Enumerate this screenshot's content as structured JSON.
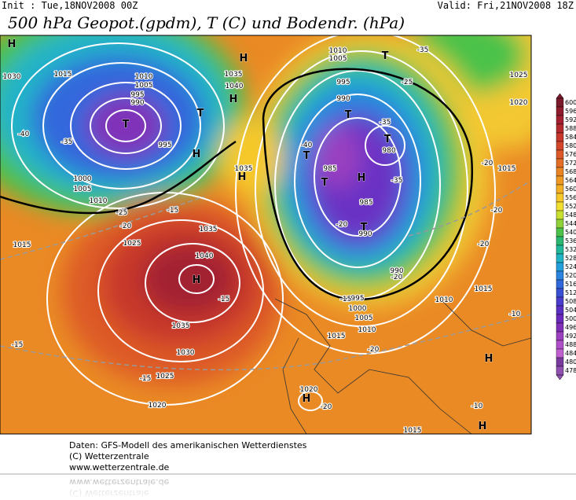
{
  "header": {
    "init": "Init : Tue,18NOV2008 00Z",
    "valid": "Valid: Fri,21NOV2008 18Z",
    "title": "500 hPa Geopot.(gpdm), T (C) und Bodendr. (hPa)"
  },
  "legend": {
    "levels": [
      600,
      596,
      592,
      588,
      584,
      580,
      576,
      572,
      568,
      564,
      560,
      556,
      552,
      548,
      544,
      540,
      536,
      532,
      528,
      524,
      520,
      516,
      512,
      508,
      504,
      500,
      496,
      492,
      488,
      484,
      480,
      478
    ],
    "colors": [
      "#7a1a2a",
      "#8e1c2c",
      "#a32030",
      "#b52a2e",
      "#c7372b",
      "#d4462a",
      "#dd5a28",
      "#e46e25",
      "#ea8423",
      "#ef9a22",
      "#f3b024",
      "#f6c82a",
      "#f2e030",
      "#c8e030",
      "#8fd23a",
      "#4cc24a",
      "#2ab870",
      "#22b89c",
      "#20b4c4",
      "#22a0dc",
      "#2a84e0",
      "#3068dc",
      "#3a50d4",
      "#4a3ccc",
      "#5a30c4",
      "#6a28bc",
      "#8030b8",
      "#9a40c0",
      "#b050c8",
      "#c060d0",
      "#7a3aa0",
      "#9050b0"
    ]
  },
  "map_labels": [
    "H",
    "1030",
    "1015",
    "1010",
    "1005",
    "995",
    "990",
    "-35",
    "T",
    "-40",
    "995",
    "T",
    "H",
    "1000",
    "1005",
    "1010",
    "-25",
    "-20",
    "-15",
    "1015",
    "1025",
    "1035",
    "1040",
    "H",
    "-15",
    "1035",
    "1030",
    "1025",
    "-15",
    "-15",
    "1020",
    "H",
    "1035",
    "1040",
    "H",
    "1035",
    "H",
    "1010",
    "1005",
    "995",
    "990",
    "T",
    "-35",
    "T",
    "980",
    "-40",
    "T",
    "985",
    "T",
    "H",
    "-35",
    "985",
    "-20",
    "990",
    "T",
    "-25",
    "-35",
    "T",
    "1025",
    "1020",
    "-20",
    "1015",
    "-20",
    "-20",
    "1015",
    "1010",
    "-10",
    "-20",
    "990",
    "995",
    "1000",
    "1005",
    "1010",
    "1015",
    "-15",
    "-20",
    "1020",
    "H",
    "-20",
    "H",
    "-10",
    "H",
    "1015"
  ],
  "footer": {
    "lines": [
      "Daten: GFS-Modell des amerikanischen Wetterdienstes",
      "(C) Wetterzentrale",
      "www.wetterzentrale.de"
    ]
  }
}
